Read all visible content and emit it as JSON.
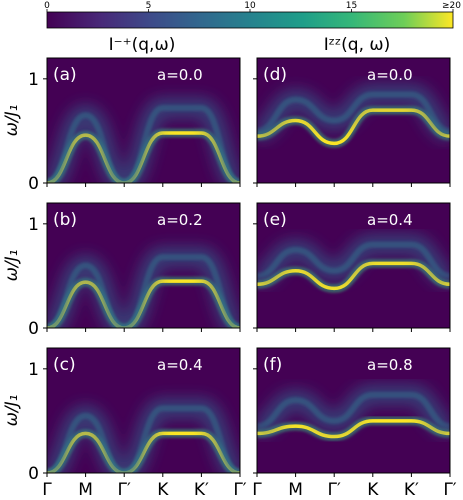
{
  "colorbar": {
    "tick_labels": [
      "0",
      "5",
      "10",
      "15",
      "≥20"
    ],
    "range": [
      0,
      20
    ],
    "colormap": "viridis"
  },
  "column_titles": [
    "I⁻⁺(q,ω)",
    "Iᶻᶻ(q, ω)"
  ],
  "ylabel": "ω/J₁",
  "y_ticks": [
    "0",
    "1"
  ],
  "x_ticks": [
    "Γ",
    "M",
    "Γ′",
    "K",
    "K′",
    "Γ′"
  ],
  "colors": {
    "low": "#440154",
    "high": "#fde725"
  },
  "chart_data": [
    {
      "type": "heatmap",
      "panel": "(a)",
      "annotation": "a=0.0",
      "column": 0,
      "row": 0,
      "ylim": [
        0,
        1.2
      ],
      "ylabel": "ω/J₁",
      "x": [
        "Γ",
        "M",
        "Γ′",
        "K",
        "K′",
        "Γ′"
      ],
      "series": [
        {
          "kind": "main",
          "values": [
            0.0,
            0.46,
            0.0,
            0.48,
            0.48,
            0.0
          ]
        },
        {
          "kind": "continuum",
          "values": [
            0.0,
            0.65,
            0.0,
            0.72,
            0.72,
            0.0
          ]
        }
      ]
    },
    {
      "type": "heatmap",
      "panel": "(d)",
      "annotation": "a=0.0",
      "column": 1,
      "row": 0,
      "ylim": [
        0,
        1.2
      ],
      "x": [
        "Γ",
        "M",
        "Γ′",
        "K",
        "K′",
        "Γ′"
      ],
      "series": [
        {
          "kind": "main",
          "values": [
            0.45,
            0.6,
            0.38,
            0.7,
            0.7,
            0.45
          ]
        },
        {
          "kind": "continuum",
          "values": [
            0.5,
            0.8,
            0.6,
            0.85,
            0.85,
            0.5
          ]
        }
      ]
    },
    {
      "type": "heatmap",
      "panel": "(b)",
      "annotation": "a=0.2",
      "column": 0,
      "row": 1,
      "ylim": [
        0,
        1.2
      ],
      "ylabel": "ω/J₁",
      "x": [
        "Γ",
        "M",
        "Γ′",
        "K",
        "K′",
        "Γ′"
      ],
      "series": [
        {
          "kind": "main",
          "values": [
            0.0,
            0.44,
            0.0,
            0.45,
            0.45,
            0.0
          ]
        },
        {
          "kind": "continuum",
          "values": [
            0.0,
            0.6,
            0.0,
            0.68,
            0.68,
            0.0
          ]
        }
      ]
    },
    {
      "type": "heatmap",
      "panel": "(e)",
      "annotation": "a=0.4",
      "column": 1,
      "row": 1,
      "ylim": [
        0,
        1.2
      ],
      "x": [
        "Γ",
        "M",
        "Γ′",
        "K",
        "K′",
        "Γ′"
      ],
      "series": [
        {
          "kind": "main",
          "values": [
            0.42,
            0.55,
            0.38,
            0.62,
            0.62,
            0.42
          ]
        },
        {
          "kind": "continuum",
          "values": [
            0.5,
            0.75,
            0.55,
            0.8,
            0.8,
            0.5
          ]
        }
      ]
    },
    {
      "type": "heatmap",
      "panel": "(c)",
      "annotation": "a=0.4",
      "column": 0,
      "row": 2,
      "ylim": [
        0,
        1.2
      ],
      "ylabel": "ω/J₁",
      "x": [
        "Γ",
        "M",
        "Γ′",
        "K",
        "K′",
        "Γ′"
      ],
      "series": [
        {
          "kind": "main",
          "values": [
            0.0,
            0.38,
            0.0,
            0.38,
            0.38,
            0.0
          ]
        },
        {
          "kind": "continuum",
          "values": [
            0.0,
            0.55,
            0.0,
            0.62,
            0.62,
            0.0
          ]
        }
      ]
    },
    {
      "type": "heatmap",
      "panel": "(f)",
      "annotation": "a=0.8",
      "column": 1,
      "row": 2,
      "ylim": [
        0,
        1.2
      ],
      "x": [
        "Γ",
        "M",
        "Γ′",
        "K",
        "K′",
        "Γ′"
      ],
      "series": [
        {
          "kind": "main",
          "values": [
            0.38,
            0.45,
            0.35,
            0.5,
            0.5,
            0.38
          ]
        },
        {
          "kind": "continuum",
          "values": [
            0.45,
            0.7,
            0.5,
            0.75,
            0.75,
            0.45
          ]
        }
      ]
    }
  ]
}
